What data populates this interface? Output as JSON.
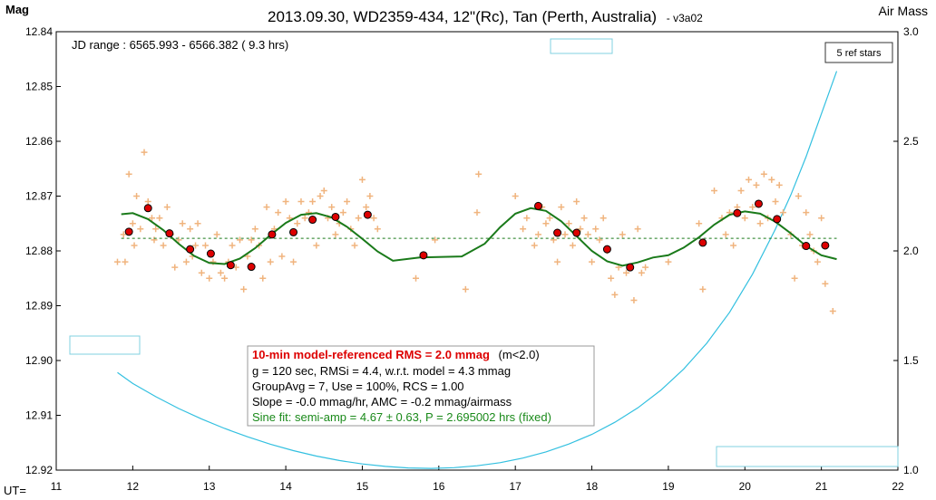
{
  "chart_data": {
    "type": "scatter",
    "title": "2013.09.30, WD2359-434, 12\"(Rc), Tan (Perth, Australia)",
    "version": "- v3a02",
    "ylabel": "Mag",
    "y2label": "Air Mass",
    "xlabel": "UT=",
    "xlim": [
      11,
      22
    ],
    "ylim": [
      12.84,
      12.92
    ],
    "y_inverted": true,
    "y2lim": [
      1.0,
      3.0
    ],
    "x_ticks": [
      "11",
      "12",
      "13",
      "14",
      "15",
      "16",
      "17",
      "18",
      "19",
      "20",
      "21",
      "22"
    ],
    "y_ticks": [
      "12.84",
      "12.85",
      "12.86",
      "12.87",
      "12.88",
      "12.89",
      "12.90",
      "12.91",
      "12.92"
    ],
    "y2_ticks": [
      "3.0",
      "2.5",
      "2.0",
      "1.5",
      "1.0"
    ],
    "grid": false,
    "jd_range": "JD range : 6565.993 - 6566.382 ( 9.3 hrs)",
    "ref_stars": "5 ref stars",
    "reference_level": 12.8777,
    "stats": {
      "rms_label": "10-min model-referenced RMS = 2.0 mmag",
      "rms_note": "(m<2.0)",
      "line1": "g = 120 sec, RMSi = 4.4, w.r.t. model = 4.3 mmag",
      "line2": "GroupAvg = 7, Use = 100%, RCS = 1.00",
      "line3": "Slope = -0.0 mmag/hr, AMC = -0.2 mmag/airmass",
      "sine_fit": "Sine fit: semi-amp = 4.67 ± 0.63, P = 2.695002 hrs (fixed)"
    },
    "colors": {
      "raw": "#f0b47e",
      "avg_fill": "#dd0000",
      "model": "#1a7a1a",
      "airmass": "#33c0e0",
      "rms_text": "#dd0000",
      "sine_text": "#1a8a1a",
      "empty_box": "#80d0e0"
    },
    "series": [
      {
        "name": "individual",
        "x": [
          11.8,
          11.88,
          11.9,
          11.95,
          12.0,
          12.02,
          12.05,
          12.1,
          12.15,
          12.2,
          12.25,
          12.28,
          12.3,
          12.35,
          12.4,
          12.45,
          12.5,
          12.55,
          12.6,
          12.65,
          12.7,
          12.75,
          12.78,
          12.82,
          12.85,
          12.9,
          12.95,
          13.0,
          13.05,
          13.1,
          13.15,
          13.2,
          13.25,
          13.3,
          13.35,
          13.4,
          13.45,
          13.5,
          13.55,
          13.6,
          13.65,
          13.7,
          13.75,
          13.8,
          13.85,
          13.9,
          13.95,
          14.0,
          14.05,
          14.1,
          14.15,
          14.2,
          14.25,
          14.3,
          14.35,
          14.4,
          14.45,
          14.5,
          14.55,
          14.6,
          14.65,
          14.7,
          14.75,
          14.8,
          14.85,
          14.9,
          14.95,
          15.0,
          15.05,
          15.1,
          15.15,
          15.2,
          15.7,
          15.95,
          16.35,
          16.5,
          16.52,
          17.0,
          17.1,
          17.15,
          17.25,
          17.3,
          17.35,
          17.4,
          17.45,
          17.5,
          17.55,
          17.6,
          17.65,
          17.7,
          17.75,
          17.8,
          17.85,
          17.9,
          17.95,
          18.0,
          18.05,
          18.1,
          18.15,
          18.2,
          18.25,
          18.3,
          18.35,
          18.4,
          18.45,
          18.5,
          18.55,
          18.6,
          18.65,
          18.7,
          19.0,
          19.4,
          19.45,
          19.6,
          19.7,
          19.75,
          19.8,
          19.85,
          19.9,
          19.95,
          20.0,
          20.05,
          20.1,
          20.15,
          20.2,
          20.25,
          20.3,
          20.35,
          20.4,
          20.45,
          20.5,
          20.6,
          20.65,
          20.7,
          20.75,
          20.8,
          20.85,
          20.9,
          20.95,
          21.0,
          21.05,
          21.15
        ],
        "y": [
          12.882,
          12.877,
          12.882,
          12.866,
          12.875,
          12.879,
          12.87,
          12.876,
          12.862,
          12.871,
          12.874,
          12.878,
          12.876,
          12.874,
          12.879,
          12.872,
          12.877,
          12.883,
          12.878,
          12.875,
          12.882,
          12.876,
          12.881,
          12.879,
          12.875,
          12.884,
          12.879,
          12.885,
          12.882,
          12.877,
          12.884,
          12.885,
          12.882,
          12.879,
          12.883,
          12.878,
          12.887,
          12.881,
          12.878,
          12.876,
          12.879,
          12.885,
          12.872,
          12.882,
          12.876,
          12.873,
          12.881,
          12.871,
          12.874,
          12.882,
          12.875,
          12.871,
          12.874,
          12.873,
          12.871,
          12.879,
          12.87,
          12.869,
          12.874,
          12.872,
          12.877,
          12.875,
          12.873,
          12.871,
          12.876,
          12.879,
          12.874,
          12.867,
          12.872,
          12.87,
          12.874,
          12.876,
          12.885,
          12.878,
          12.887,
          12.873,
          12.866,
          12.87,
          12.876,
          12.874,
          12.879,
          12.877,
          12.872,
          12.875,
          12.874,
          12.878,
          12.882,
          12.872,
          12.877,
          12.875,
          12.879,
          12.871,
          12.876,
          12.874,
          12.877,
          12.882,
          12.876,
          12.878,
          12.874,
          12.88,
          12.885,
          12.888,
          12.883,
          12.877,
          12.884,
          12.883,
          12.889,
          12.876,
          12.884,
          12.883,
          12.882,
          12.875,
          12.887,
          12.869,
          12.874,
          12.877,
          12.873,
          12.879,
          12.872,
          12.869,
          12.874,
          12.867,
          12.872,
          12.868,
          12.875,
          12.866,
          12.874,
          12.867,
          12.871,
          12.868,
          12.873,
          12.877,
          12.885,
          12.87,
          12.879,
          12.873,
          12.877,
          12.88,
          12.882,
          12.874,
          12.886,
          12.891
        ]
      },
      {
        "name": "group_average",
        "x": [
          11.95,
          12.2,
          12.48,
          12.75,
          13.02,
          13.28,
          13.55,
          13.82,
          14.1,
          14.35,
          14.65,
          15.07,
          15.8,
          17.3,
          17.55,
          17.8,
          18.2,
          18.5,
          19.45,
          19.9,
          20.18,
          20.42,
          20.8,
          21.05
        ],
        "y": [
          12.8765,
          12.8722,
          12.8768,
          12.8797,
          12.8805,
          12.8826,
          12.8829,
          12.877,
          12.8766,
          12.8743,
          12.8738,
          12.8734,
          12.8808,
          12.8718,
          12.8767,
          12.8767,
          12.8797,
          12.883,
          12.8785,
          12.8731,
          12.8714,
          12.8742,
          12.8791,
          12.879
        ]
      },
      {
        "name": "model",
        "x": [
          11.85,
          12.0,
          12.2,
          12.4,
          12.6,
          12.8,
          13.0,
          13.2,
          13.4,
          13.6,
          13.8,
          14.0,
          14.2,
          14.4,
          14.6,
          14.8,
          15.0,
          15.2,
          15.4,
          15.75,
          16.3,
          16.6,
          16.8,
          17.0,
          17.2,
          17.4,
          17.6,
          17.8,
          18.0,
          18.2,
          18.4,
          18.6,
          18.8,
          19.0,
          19.2,
          19.4,
          19.6,
          19.8,
          20.0,
          20.2,
          20.4,
          20.6,
          20.8,
          21.0,
          21.2
        ],
        "y": [
          12.8733,
          12.8731,
          12.8742,
          12.8762,
          12.8787,
          12.8809,
          12.8822,
          12.8824,
          12.8814,
          12.8795,
          12.8771,
          12.8749,
          12.8734,
          12.8731,
          12.8739,
          12.8756,
          12.8778,
          12.8801,
          12.8818,
          12.8812,
          12.881,
          12.8787,
          12.8757,
          12.8732,
          12.8722,
          12.8727,
          12.8746,
          12.8773,
          12.88,
          12.8819,
          12.8827,
          12.8821,
          12.8812,
          12.8808,
          12.8794,
          12.8775,
          12.8752,
          12.8734,
          12.8728,
          12.8732,
          12.8747,
          12.8768,
          12.8791,
          12.8808,
          12.8815
        ]
      },
      {
        "name": "airmass",
        "x": [
          11.8,
          12.0,
          12.3,
          12.6,
          12.9,
          13.2,
          13.5,
          13.8,
          14.1,
          14.4,
          14.7,
          15.0,
          15.3,
          15.6,
          15.9,
          16.2,
          16.5,
          16.8,
          17.1,
          17.4,
          17.7,
          18.0,
          18.3,
          18.6,
          18.9,
          19.2,
          19.5,
          19.8,
          20.1,
          20.4,
          20.6,
          20.8,
          21.0,
          21.2
        ],
        "y": [
          1.445,
          1.395,
          1.335,
          1.281,
          1.233,
          1.19,
          1.152,
          1.118,
          1.089,
          1.064,
          1.044,
          1.028,
          1.017,
          1.01,
          1.008,
          1.011,
          1.02,
          1.034,
          1.055,
          1.083,
          1.119,
          1.163,
          1.218,
          1.284,
          1.364,
          1.461,
          1.578,
          1.72,
          1.894,
          2.1,
          2.255,
          2.43,
          2.625,
          2.82
        ]
      }
    ]
  }
}
